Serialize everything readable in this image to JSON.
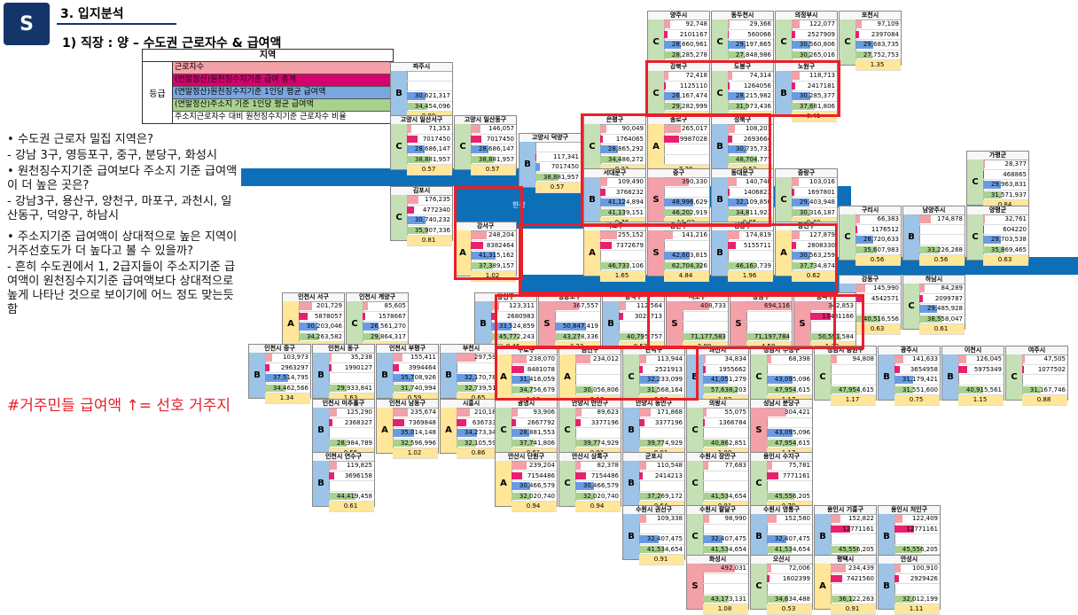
{
  "header": {
    "badge": "S",
    "section_title": "3. 입지분석",
    "subtitle": "1) 직장 : 양 – 수도권 근로자수 & 급여액"
  },
  "legend": {
    "title": "지역",
    "grade_label": "등급",
    "items": [
      "근로자수",
      "(연말정산)원천징수지기준 급여 총계",
      "(연말정산)원천징수지기준 1인당 평균 급여액",
      "(연말정산)주소지 기준 1인당 평균 급여액",
      "주소지근로자수 대비 원천징수지기준 근로자수 비율"
    ]
  },
  "bullets": [
    "• 수도권 근로자 밀집 지역은?",
    " - 강남 3구, 영등포구, 중구, 분당구, 화성시",
    "• 원천징수지기준 급여보다 주소지 기준 급여액이 더 높은 곳은?",
    " - 강남3구, 용산구, 양천구, 마포구, 과천시, 일산동구, 덕양구, 하남시",
    "• 주소지기준 급여액이 상대적으로 높은 지역이 거주선호도가 더 높다고 볼 수 있을까?",
    " - 흔히 수도권에서 1, 2급지들이 주소지기준 급여액이 원천징수지기준 급여액보다 상대적으로 높게 나타난 것으로 보이기에 어느 정도 맞는듯함"
  ],
  "hashtag": "#거주민들 급여액 ↑= 선호 거주지",
  "river_label": "한강",
  "cells": [
    {
      "name": "양주시",
      "g": "C",
      "v": [
        "92,748",
        "2101167",
        "28,660,961",
        "28,285,278",
        "0.85"
      ]
    },
    {
      "name": "동두천시",
      "g": "C",
      "v": [
        "29,366",
        "560066",
        "29,197,865",
        "27,848,986",
        "0.62"
      ]
    },
    {
      "name": "의정부시",
      "g": "C",
      "v": [
        "122,077",
        "2527909",
        "30,560,806",
        "30,265,016",
        "0.50"
      ]
    },
    {
      "name": "포천시",
      "g": "C",
      "v": [
        "97,109",
        "2397084",
        "29,683,735",
        "27,752,753",
        "1.35"
      ]
    },
    {
      "name": "파주시",
      "g": "B",
      "v": [
        "",
        "",
        "30,621,317",
        "34,454,096",
        "0.80"
      ]
    },
    {
      "name": "강북구",
      "g": "C",
      "v": [
        "72,418",
        "1125110",
        "26,167,474",
        "29,282,999",
        "0.40"
      ]
    },
    {
      "name": "도봉구",
      "g": "C",
      "v": [
        "74,314",
        "1264056",
        "28,215,982",
        "31,973,436",
        "0.41"
      ]
    },
    {
      "name": "노원구",
      "g": "B",
      "v": [
        "118,713",
        "2417181",
        "30,285,377",
        "37,681,806",
        "0.41"
      ]
    },
    {
      "name": "고양시 일산서구",
      "g": "C",
      "v": [
        "71,353",
        "7017450",
        "28,686,147",
        "38,881,957",
        "0.57"
      ]
    },
    {
      "name": "고양시 일산동구",
      "g": "C",
      "v": [
        "146,057",
        "7017450",
        "28,686,147",
        "38,881,957",
        "0.57"
      ]
    },
    {
      "name": "고양시 덕양구",
      "g": "B",
      "v": [
        "",
        "117,341",
        "7017450",
        "38,881,957",
        "0.57"
      ]
    },
    {
      "name": "은평구",
      "g": "C",
      "v": [
        "90,049",
        "1764065",
        "28,865,292",
        "34,486,272",
        "0.33"
      ]
    },
    {
      "name": "종로구",
      "g": "A",
      "v": [
        "265,017",
        "9987028",
        "",
        "",
        "7.39"
      ]
    },
    {
      "name": "성북구",
      "g": "B",
      "v": [
        "108,201",
        "2693664",
        "30,735,733",
        "48,704,777",
        "0.53"
      ]
    },
    {
      "name": "서대문구",
      "g": "B",
      "v": [
        "109,490",
        "3768232",
        "41,124,894",
        "41,139,151",
        "0.76"
      ]
    },
    {
      "name": "중구",
      "g": "S",
      "v": [
        "390,330",
        "",
        "48,996,629",
        "46,202,919",
        "11.02"
      ]
    },
    {
      "name": "동대문구",
      "g": "B",
      "v": [
        "140,748",
        "1406823",
        "32,109,850",
        "34,811,921",
        "0.85"
      ]
    },
    {
      "name": "중랑구",
      "g": "C",
      "v": [
        "103,016",
        "1697801",
        "29,403,948",
        "30,316,187",
        "0.40"
      ]
    },
    {
      "name": "김포시",
      "g": "C",
      "v": [
        "176,235",
        "4772340",
        "30,740,232",
        "35,907,336",
        "0.81"
      ]
    },
    {
      "name": "가평군",
      "g": "C",
      "v": [
        "28,377",
        "468865",
        "29,963,831",
        "31,571,937",
        "0.84"
      ]
    },
    {
      "name": "구리시",
      "g": "C",
      "v": [
        "66,383",
        "1176512",
        "28,720,633",
        "35,607,983",
        "0.56"
      ]
    },
    {
      "name": "남양주시",
      "g": "B",
      "v": [
        "174,878",
        "",
        "",
        "33,226,268",
        "0.56"
      ]
    },
    {
      "name": "양평군",
      "g": "C",
      "v": [
        "32,761",
        "604220",
        "29,703,538",
        "35,869,465",
        "0.63"
      ]
    },
    {
      "name": "강서구",
      "g": "A",
      "v": [
        "248,204",
        "8382464",
        "41,315,162",
        "37,389,157",
        "1.02"
      ]
    },
    {
      "name": "마포구",
      "g": "A",
      "v": [
        "255,152",
        "7372679",
        "",
        "46,733,106",
        "1.65"
      ]
    },
    {
      "name": "용산구",
      "g": "S",
      "v": [
        "141,216",
        "",
        "42,603,815",
        "62,704,326",
        "4.84"
      ]
    },
    {
      "name": "성동구",
      "g": "B",
      "v": [
        "174,819",
        "5155711",
        "",
        "46,163,739",
        "1.96"
      ]
    },
    {
      "name": "광진구",
      "g": "A",
      "v": [
        "127,879",
        "2808330",
        "30,563,259",
        "37,734,874",
        "0.62"
      ]
    },
    {
      "name": "강동구",
      "g": "B",
      "v": [
        "145,990",
        "4542571",
        "",
        "40,516,556",
        "0.63"
      ]
    },
    {
      "name": "하남시",
      "g": "C",
      "v": [
        "84,289",
        "2099787",
        "29,485,928",
        "38,558,047",
        "0.61"
      ]
    },
    {
      "name": "인천시 서구",
      "g": "A",
      "v": [
        "201,729",
        "5878057",
        "30,203,046",
        "34,263,582",
        "0.80"
      ]
    },
    {
      "name": "인천시 계양구",
      "g": "C",
      "v": [
        "85,605",
        "1578667",
        "26,561,270",
        "29,864,317",
        "0.50"
      ]
    },
    {
      "name": "양천구",
      "g": "B",
      "v": [
        "123,311",
        "2680983",
        "33,524,859",
        "45,772,243",
        "0.46"
      ]
    },
    {
      "name": "영등포구",
      "g": "S",
      "v": [
        "367,557",
        "",
        "50,847,419",
        "43,278,336",
        "3.23"
      ]
    },
    {
      "name": "동작구",
      "g": "B",
      "v": [
        "112,564",
        "3025713",
        "",
        "40,795,757",
        "0.52"
      ]
    },
    {
      "name": "서초구",
      "g": "S",
      "v": [
        "408,733",
        "",
        "",
        "71,177,583",
        "2.89"
      ]
    },
    {
      "name": "강남구",
      "g": "S",
      "v": [
        "694,116",
        "",
        "",
        "71,197,784",
        "4.58"
      ]
    },
    {
      "name": "송파구",
      "g": "S",
      "v": [
        "342,853",
        "13481166",
        "",
        "50,591,584",
        "1.33"
      ]
    },
    {
      "name": "인천시 중구",
      "g": "B",
      "v": [
        "103,973",
        "2963297",
        "37,514,795",
        "34,462,566",
        "1.34"
      ]
    },
    {
      "name": "인천시 동구",
      "g": "B",
      "v": [
        "35,238",
        "1990127",
        "",
        "29,933,841",
        "1.63"
      ]
    },
    {
      "name": "인천시 부평구",
      "g": "B",
      "v": [
        "155,411",
        "3994464",
        "35,708,926",
        "31,740,994",
        "0.59"
      ]
    },
    {
      "name": "부천시",
      "g": "B",
      "v": [
        "297,595",
        "",
        "32,170,781",
        "32,739,519",
        "0.65"
      ]
    },
    {
      "name": "구로구",
      "g": "A",
      "v": [
        "238,070",
        "8481078",
        "31,416,059",
        "34,756,679",
        "1.10"
      ]
    },
    {
      "name": "금천구",
      "g": "A",
      "v": [
        "234,012",
        "",
        "",
        "30,056,806",
        "2.18"
      ]
    },
    {
      "name": "관악구",
      "g": "C",
      "v": [
        "113,944",
        "2521913",
        "32,233,099",
        "31,568,164",
        "0.36"
      ]
    },
    {
      "name": "과천시",
      "g": "B",
      "v": [
        "34,834",
        "1955662",
        "41,051,279",
        "57,638,203",
        "1.92"
      ]
    },
    {
      "name": "성남시 수정구",
      "g": "C",
      "v": [
        "68,398",
        "",
        "43,095,096",
        "47,954,615",
        "1.17"
      ]
    },
    {
      "name": "성남시 중원구",
      "g": "C",
      "v": [
        "94,808",
        "",
        "",
        "47,954,615",
        "1.17"
      ]
    },
    {
      "name": "광주시",
      "g": "B",
      "v": [
        "141,633",
        "3654958",
        "31,179,421",
        "31,551,600",
        "0.75"
      ]
    },
    {
      "name": "이천시",
      "g": "B",
      "v": [
        "126,045",
        "5975349",
        "",
        "40,915,561",
        "1.15"
      ]
    },
    {
      "name": "여주시",
      "g": "C",
      "v": [
        "47,505",
        "1077502",
        "",
        "31,167,746",
        "0.88"
      ]
    },
    {
      "name": "인천시 미추홀구",
      "g": "B",
      "v": [
        "125,290",
        "2368327",
        "",
        "28,984,789",
        "0.55"
      ]
    },
    {
      "name": "인천시 남동구",
      "g": "A",
      "v": [
        "235,674",
        "7369848",
        "35,014,148",
        "32,596,996",
        "1.02"
      ]
    },
    {
      "name": "시흥시",
      "g": "A",
      "v": [
        "210,182",
        "6367335",
        "34,273,347",
        "32,105,592",
        "0.86"
      ]
    },
    {
      "name": "광명시",
      "g": "C",
      "v": [
        "93,906",
        "2667792",
        "28,881,553",
        "37,741,806",
        "0.61"
      ]
    },
    {
      "name": "안양시 만안구",
      "g": "C",
      "v": [
        "89,623",
        "3377196",
        "",
        "39,774,929",
        "0.91"
      ]
    },
    {
      "name": "안양시 동안구",
      "g": "B",
      "v": [
        "171,868",
        "3377196",
        "",
        "39,774,929",
        "0.91"
      ]
    },
    {
      "name": "의왕시",
      "g": "C",
      "v": [
        "55,075",
        "1366784",
        "",
        "40,862,851",
        "1.00"
      ]
    },
    {
      "name": "성남시 분당구",
      "g": "S",
      "v": [
        "304,421",
        "",
        "43,095,096",
        "47,954,615",
        "1.17"
      ]
    },
    {
      "name": "인천시 연수구",
      "g": "B",
      "v": [
        "119,825",
        "3696158",
        "",
        "44,419,458",
        "0.61"
      ]
    },
    {
      "name": "안산시 단원구",
      "g": "A",
      "v": [
        "239,204",
        "7154486",
        "30,466,579",
        "32,020,740",
        "0.94"
      ]
    },
    {
      "name": "안산시 상록구",
      "g": "C",
      "v": [
        "82,378",
        "7154486",
        "30,466,579",
        "32,020,740",
        "0.94"
      ]
    },
    {
      "name": "군포시",
      "g": "B",
      "v": [
        "110,548",
        "2414213",
        "",
        "37,269,172",
        "0.64"
      ]
    },
    {
      "name": "수원시 장안구",
      "g": "C",
      "v": [
        "77,683",
        "",
        "",
        "41,534,654",
        "0.91"
      ]
    },
    {
      "name": "용인시 수지구",
      "g": "C",
      "v": [
        "75,781",
        "7771161",
        "",
        "45,556,205",
        "0.79"
      ]
    },
    {
      "name": "수원시 권선구",
      "g": "B",
      "v": [
        "109,338",
        "",
        "32,407,475",
        "41,534,654",
        "0.91"
      ]
    },
    {
      "name": "수원시 팔달구",
      "g": "C",
      "v": [
        "98,990",
        "",
        "32,407,475",
        "41,534,654",
        "0.91"
      ]
    },
    {
      "name": "수원시 영통구",
      "g": "B",
      "v": [
        "152,580",
        "",
        "32,407,475",
        "41,534,654",
        "0.91"
      ]
    },
    {
      "name": "용인시 기흥구",
      "g": "B",
      "v": [
        "152,822",
        "12771161",
        "",
        "45,556,205",
        "0.79"
      ]
    },
    {
      "name": "용인시 처인구",
      "g": "B",
      "v": [
        "122,409",
        "12771161",
        "",
        "45,556,205",
        "0.79"
      ]
    },
    {
      "name": "화성시",
      "g": "S",
      "v": [
        "492,031",
        "",
        "",
        "43,173,131",
        "1.08"
      ]
    },
    {
      "name": "오산시",
      "g": "C",
      "v": [
        "72,006",
        "1602399",
        "",
        "34,634,488",
        "0.53"
      ]
    },
    {
      "name": "평택시",
      "g": "A",
      "v": [
        "234,439",
        "7421560",
        "",
        "36,122,263",
        "0.91"
      ]
    },
    {
      "name": "안성시",
      "g": "B",
      "v": [
        "100,910",
        "2929426",
        "",
        "32,012,199",
        "1.11"
      ]
    }
  ]
}
